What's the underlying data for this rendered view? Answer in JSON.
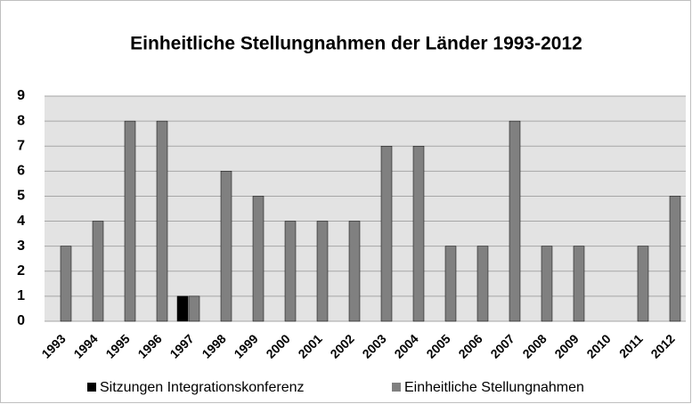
{
  "chart_data": {
    "type": "bar",
    "title": "Einheitliche Stellungnahmen der Länder 1993-2012",
    "categories": [
      "1993",
      "1994",
      "1995",
      "1996",
      "1997",
      "1998",
      "1999",
      "2000",
      "2001",
      "2002",
      "2003",
      "2004",
      "2005",
      "2006",
      "2007",
      "2008",
      "2009",
      "2010",
      "2011",
      "2012"
    ],
    "series": [
      {
        "name": "Sitzungen Integrationskonferenz",
        "color": "#000000",
        "values": [
          0,
          0,
          0,
          0,
          1,
          0,
          0,
          0,
          0,
          0,
          0,
          0,
          0,
          0,
          0,
          0,
          0,
          0,
          0,
          0
        ]
      },
      {
        "name": "Einheitliche Stellungnahmen",
        "color": "#808080",
        "values": [
          3,
          4,
          8,
          8,
          1,
          6,
          5,
          4,
          4,
          4,
          7,
          7,
          3,
          3,
          8,
          3,
          3,
          0,
          3,
          5
        ]
      }
    ],
    "ylim": [
      0,
      9
    ],
    "yticks": [
      0,
      1,
      2,
      3,
      4,
      5,
      6,
      7,
      8,
      9
    ],
    "grid": true,
    "legend": "bottom"
  }
}
